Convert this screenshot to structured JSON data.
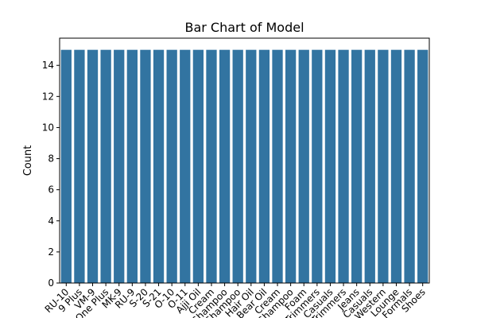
{
  "chart_data": {
    "type": "bar",
    "title": "Bar Chart of Model",
    "xlabel": "",
    "ylabel": "Count",
    "ylim": [
      0,
      15.75
    ],
    "yticks": [
      0,
      2,
      4,
      6,
      8,
      10,
      12,
      14
    ],
    "grid": false,
    "bar_color": "#3274a1",
    "categories": [
      "RU-10",
      "9 Plus",
      "VM-9",
      "One Plus",
      "MK-9",
      "RU-9",
      "S-20",
      "S-21",
      "O-10",
      "O-11",
      "Ajji Oil",
      "Cream",
      "Shampoo",
      "Shampoo",
      "Hair Oil",
      "Bear Oil",
      "Cream",
      "Shampoo",
      "Foam",
      "Trimmers",
      "Casuals",
      "Trimmers",
      "Jeans",
      "Casuals",
      "Western",
      "Lounge",
      "Formals",
      "Shoes"
    ],
    "values": [
      15,
      15,
      15,
      15,
      15,
      15,
      15,
      15,
      15,
      15,
      15,
      15,
      15,
      15,
      15,
      15,
      15,
      15,
      15,
      15,
      15,
      15,
      15,
      15,
      15,
      15,
      15,
      15
    ]
  }
}
